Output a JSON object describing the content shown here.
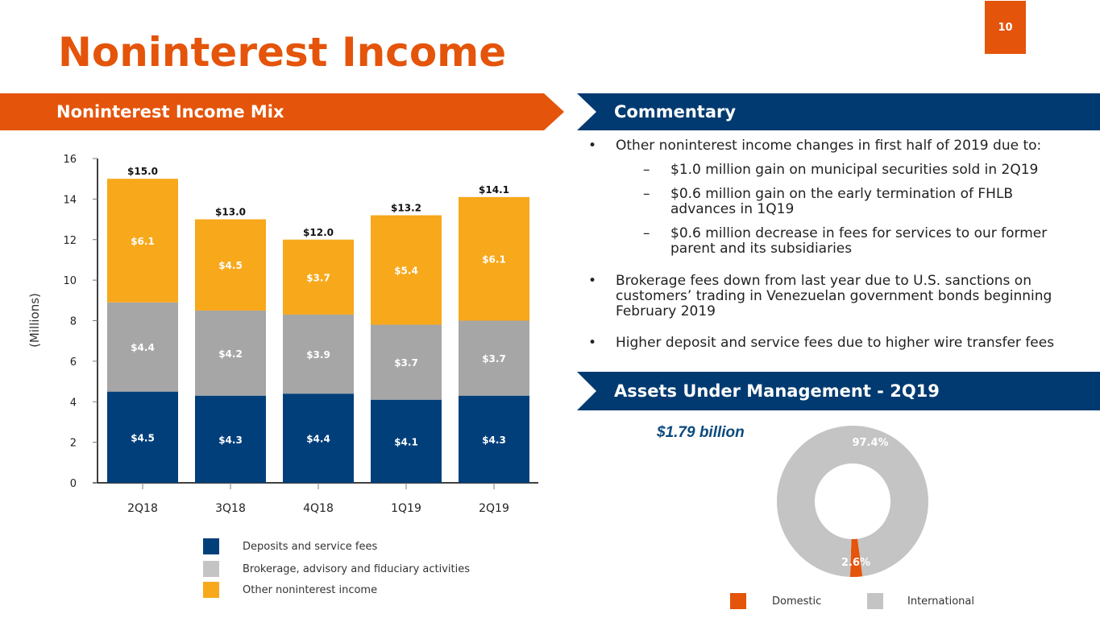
{
  "page_number": "10",
  "title": "Noninterest Income",
  "left_header": "Noninterest Income Mix",
  "commentary_header": "Commentary",
  "aum_header": "Assets Under Management - 2Q19",
  "commentary": [
    {
      "type": "bullet",
      "text": "Other noninterest income changes in first half of 2019 due to:"
    },
    {
      "type": "sub",
      "text": "$1.0 million gain on municipal securities sold in 2Q19"
    },
    {
      "type": "sub",
      "text": "$0.6 million gain on the early termination of FHLB advances in 1Q19"
    },
    {
      "type": "sub",
      "text": "$0.6 million decrease in fees for services to our former parent and its subsidiaries"
    },
    {
      "type": "bullet",
      "text": "Brokerage fees down from last year due to U.S. sanctions on customers’ trading in Venezuelan government bonds beginning February 2019"
    },
    {
      "type": "bullet",
      "text": "Higher deposit and service fees due to higher wire transfer fees"
    }
  ],
  "colors": {
    "orange": "#e4540a",
    "navy": "#003a70",
    "gold": "#f7a81b",
    "gray": "#a6a6a6",
    "lightgray": "#c4c4c4"
  },
  "chart_data": [
    {
      "type": "bar",
      "stacked": true,
      "title": "Noninterest Income Mix",
      "ylabel": "(Millions)",
      "ylim": [
        0,
        16
      ],
      "yticks": [
        "0",
        "2",
        "4",
        "6",
        "8",
        "10",
        "12",
        "14",
        "16"
      ],
      "categories": [
        "2Q18",
        "3Q18",
        "4Q18",
        "1Q19",
        "2Q19"
      ],
      "series": [
        {
          "name": "Deposits and service fees",
          "color": "#003f7a",
          "values": [
            4.5,
            4.3,
            4.4,
            4.1,
            4.3
          ],
          "labels": [
            "$4.5",
            "$4.3",
            "$4.4",
            "$4.1",
            "$4.3"
          ]
        },
        {
          "name": "Brokerage, advisory and fiduciary activities",
          "color": "#a6a6a6",
          "values": [
            4.4,
            4.2,
            3.9,
            3.7,
            3.7
          ],
          "labels": [
            "$4.4",
            "$4.2",
            "$3.9",
            "$3.7",
            "$3.7"
          ]
        },
        {
          "name": "Other noninterest income",
          "color": "#f7a81b",
          "values": [
            6.1,
            4.5,
            3.7,
            5.4,
            6.1
          ],
          "labels": [
            "$6.1",
            "$4.5",
            "$3.7",
            "$5.4",
            "$6.1"
          ]
        }
      ],
      "totals": [
        15.0,
        13.0,
        12.0,
        13.2,
        14.1
      ],
      "total_labels": [
        "$15.0",
        "$13.0",
        "$12.0",
        "$13.2",
        "$14.1"
      ],
      "legend": "bottom"
    },
    {
      "type": "pie",
      "donut": true,
      "title": "$1.79 billion",
      "slices": [
        {
          "name": "Domestic",
          "value": 2.6,
          "label": "2.6%",
          "color": "#e4540a"
        },
        {
          "name": "International",
          "value": 97.4,
          "label": "97.4%",
          "color": "#c4c4c4"
        }
      ],
      "legend": "bottom"
    }
  ]
}
